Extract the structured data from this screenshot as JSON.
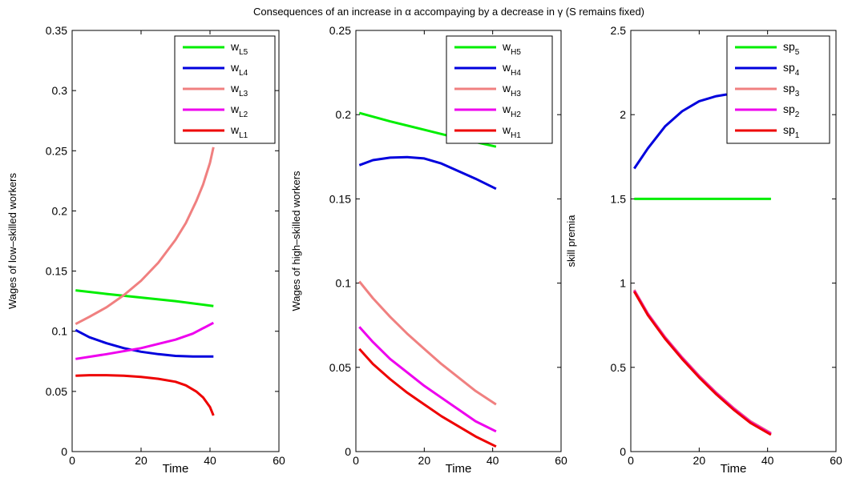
{
  "figure": {
    "suptitle": "Consequences of an increase in α accompaying by a decrease in γ (S remains fixed)"
  },
  "chart_data": [
    {
      "type": "line",
      "title": "",
      "xlabel": "Time",
      "ylabel": "Wages of low–skilled workers",
      "xlim": [
        0,
        60
      ],
      "ylim": [
        0,
        0.35
      ],
      "xticks": [
        "0",
        "20",
        "40",
        "60"
      ],
      "yticks": [
        "0",
        "0.05",
        "0.1",
        "0.15",
        "0.2",
        "0.25",
        "0.3",
        "0.35"
      ],
      "legend_position": "top-right",
      "series": [
        {
          "name": "w",
          "sub": "L5",
          "color": "#00ee00",
          "x": [
            1,
            10,
            20,
            30,
            41
          ],
          "y": [
            0.134,
            0.131,
            0.128,
            0.125,
            0.121
          ]
        },
        {
          "name": "w",
          "sub": "L4",
          "color": "#0000dd",
          "x": [
            1,
            5,
            10,
            15,
            20,
            25,
            30,
            35,
            41
          ],
          "y": [
            0.101,
            0.095,
            0.09,
            0.086,
            0.083,
            0.081,
            0.0795,
            0.079,
            0.079
          ]
        },
        {
          "name": "w",
          "sub": "L3",
          "color": "#f08080",
          "x": [
            1,
            5,
            10,
            15,
            20,
            25,
            30,
            33,
            36,
            38,
            40,
            41
          ],
          "y": [
            0.106,
            0.112,
            0.12,
            0.13,
            0.142,
            0.157,
            0.176,
            0.19,
            0.208,
            0.222,
            0.24,
            0.253
          ]
        },
        {
          "name": "w",
          "sub": "L2",
          "color": "#ee00ee",
          "x": [
            1,
            10,
            20,
            30,
            35,
            41
          ],
          "y": [
            0.077,
            0.081,
            0.086,
            0.093,
            0.098,
            0.107
          ]
        },
        {
          "name": "w",
          "sub": "L1",
          "color": "#ee0000",
          "x": [
            1,
            5,
            10,
            15,
            20,
            25,
            30,
            33,
            36,
            38,
            40,
            41
          ],
          "y": [
            0.063,
            0.0635,
            0.0635,
            0.063,
            0.062,
            0.0605,
            0.058,
            0.055,
            0.05,
            0.045,
            0.037,
            0.03
          ]
        }
      ]
    },
    {
      "type": "line",
      "title": "",
      "xlabel": "Time",
      "ylabel": "Wages of high–skilled workers",
      "xlim": [
        0,
        60
      ],
      "ylim": [
        0,
        0.25
      ],
      "xticks": [
        "0",
        "20",
        "40",
        "60"
      ],
      "yticks": [
        "0",
        "0.05",
        "0.1",
        "0.15",
        "0.2",
        "0.25"
      ],
      "legend_position": "top-right",
      "series": [
        {
          "name": "w",
          "sub": "H5",
          "color": "#00ee00",
          "x": [
            1,
            10,
            20,
            30,
            41
          ],
          "y": [
            0.201,
            0.196,
            0.191,
            0.186,
            0.181
          ]
        },
        {
          "name": "w",
          "sub": "H4",
          "color": "#0000dd",
          "x": [
            1,
            5,
            10,
            15,
            20,
            25,
            30,
            35,
            41
          ],
          "y": [
            0.17,
            0.173,
            0.1745,
            0.1748,
            0.174,
            0.171,
            0.1665,
            0.162,
            0.156
          ]
        },
        {
          "name": "w",
          "sub": "H3",
          "color": "#f08080",
          "x": [
            1,
            5,
            10,
            15,
            20,
            25,
            30,
            35,
            41
          ],
          "y": [
            0.101,
            0.091,
            0.08,
            0.07,
            0.061,
            0.052,
            0.044,
            0.036,
            0.028
          ]
        },
        {
          "name": "w",
          "sub": "H2",
          "color": "#ee00ee",
          "x": [
            1,
            5,
            10,
            15,
            20,
            25,
            30,
            35,
            41
          ],
          "y": [
            0.074,
            0.065,
            0.055,
            0.047,
            0.039,
            0.032,
            0.025,
            0.018,
            0.012
          ]
        },
        {
          "name": "w",
          "sub": "H1",
          "color": "#ee0000",
          "x": [
            1,
            5,
            10,
            15,
            20,
            25,
            30,
            35,
            41
          ],
          "y": [
            0.061,
            0.052,
            0.043,
            0.035,
            0.028,
            0.021,
            0.015,
            0.009,
            0.003
          ]
        }
      ]
    },
    {
      "type": "line",
      "title": "",
      "xlabel": "Time",
      "ylabel": "skill premia",
      "xlim": [
        0,
        60
      ],
      "ylim": [
        0,
        2.5
      ],
      "xticks": [
        "0",
        "20",
        "40",
        "60"
      ],
      "yticks": [
        "0",
        "0.5",
        "1",
        "1.5",
        "2",
        "2.5"
      ],
      "legend_position": "top-right",
      "series": [
        {
          "name": "sp",
          "sub": "5",
          "color": "#00ee00",
          "x": [
            1,
            41
          ],
          "y": [
            1.5,
            1.5
          ]
        },
        {
          "name": "sp",
          "sub": "4",
          "color": "#0000dd",
          "x": [
            1,
            5,
            10,
            15,
            20,
            25,
            28
          ],
          "y": [
            1.68,
            1.8,
            1.93,
            2.02,
            2.08,
            2.11,
            2.12
          ]
        },
        {
          "name": "sp",
          "sub": "3",
          "color": "#f08080",
          "x": [
            1,
            5,
            10,
            15,
            20,
            25,
            30,
            35,
            41
          ],
          "y": [
            0.96,
            0.82,
            0.68,
            0.56,
            0.45,
            0.35,
            0.26,
            0.18,
            0.11
          ]
        },
        {
          "name": "sp",
          "sub": "2",
          "color": "#ee00ee",
          "x": [
            1,
            5,
            10,
            15,
            20,
            25,
            30,
            35,
            41
          ],
          "y": [
            0.955,
            0.815,
            0.675,
            0.555,
            0.445,
            0.345,
            0.255,
            0.175,
            0.105
          ]
        },
        {
          "name": "sp",
          "sub": "1",
          "color": "#ee0000",
          "x": [
            1,
            5,
            10,
            15,
            20,
            25,
            30,
            35,
            41
          ],
          "y": [
            0.95,
            0.81,
            0.67,
            0.55,
            0.44,
            0.34,
            0.25,
            0.17,
            0.1
          ]
        }
      ]
    }
  ]
}
